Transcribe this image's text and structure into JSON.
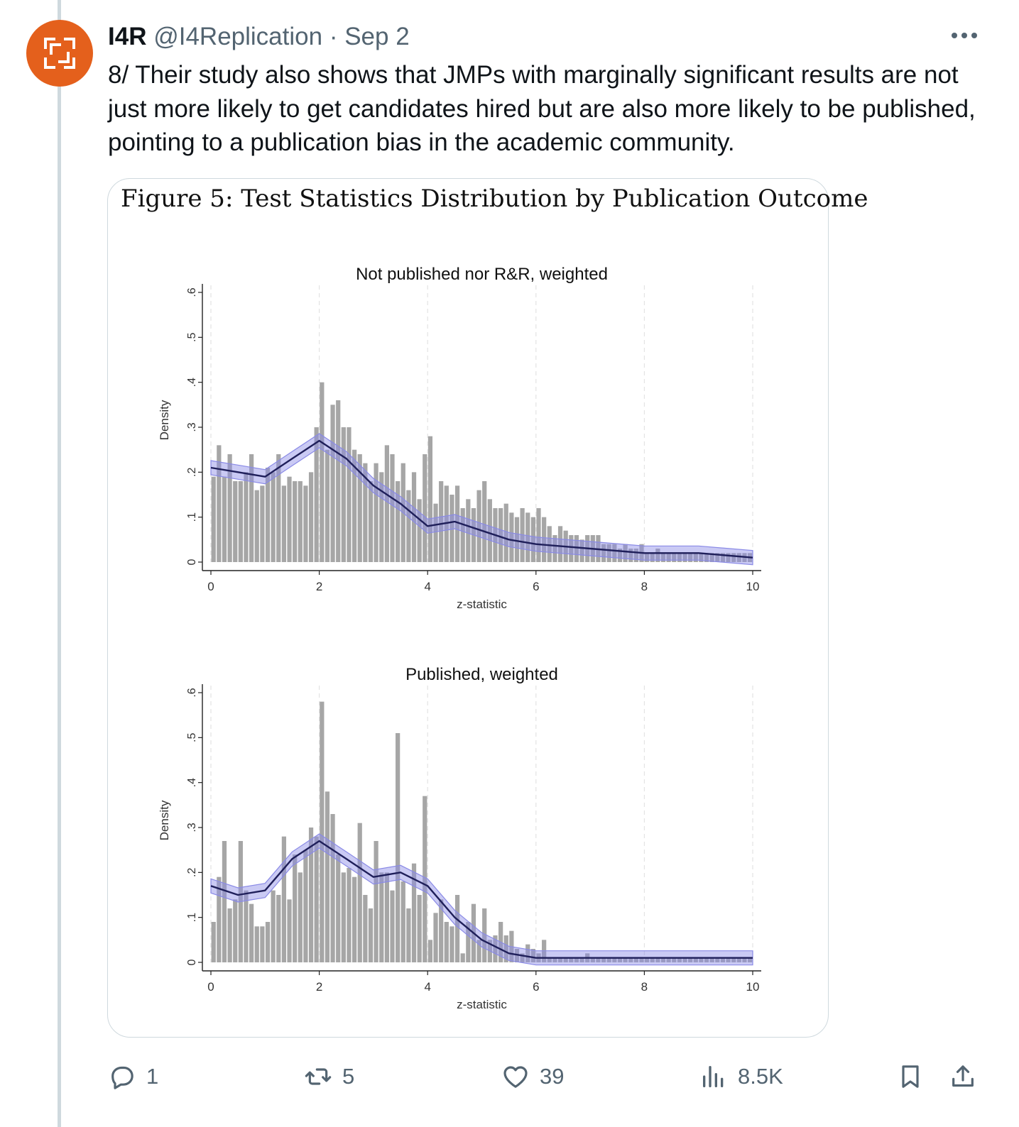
{
  "tweet": {
    "author_name": "I4R",
    "handle": "@I4Replication",
    "separator": "·",
    "date": "Sep 2",
    "text": "8/ Their study also shows that JMPs with marginally significant results are not just more likely to get candidates hired but are also more likely to be published, pointing to a publication bias in the academic community."
  },
  "figure": {
    "caption": "Figure 5: Test Statistics Distribution by Publication Outcome"
  },
  "chart_data": [
    {
      "type": "bar",
      "title": "Not published nor R&R, weighted",
      "xlabel": "z-statistic",
      "ylabel": "Density",
      "xlim": [
        0,
        10
      ],
      "ylim": [
        0,
        0.6
      ],
      "xticks": [
        "0",
        "2",
        "4",
        "6",
        "8",
        "10"
      ],
      "yticks": [
        "0",
        ".1",
        ".2",
        ".3",
        ".4",
        ".5",
        ".6"
      ],
      "bin_width": 0.1,
      "histogram_densities": [
        0.19,
        0.26,
        0.19,
        0.24,
        0.18,
        0.18,
        0.2,
        0.24,
        0.16,
        0.17,
        0.21,
        0.2,
        0.24,
        0.17,
        0.19,
        0.18,
        0.18,
        0.17,
        0.2,
        0.3,
        0.4,
        0.25,
        0.35,
        0.36,
        0.3,
        0.3,
        0.25,
        0.24,
        0.22,
        0.18,
        0.22,
        0.2,
        0.26,
        0.24,
        0.18,
        0.22,
        0.16,
        0.2,
        0.14,
        0.24,
        0.28,
        0.13,
        0.18,
        0.17,
        0.15,
        0.17,
        0.12,
        0.14,
        0.12,
        0.16,
        0.18,
        0.14,
        0.12,
        0.12,
        0.13,
        0.11,
        0.1,
        0.12,
        0.11,
        0.1,
        0.12,
        0.1,
        0.08,
        0.06,
        0.08,
        0.07,
        0.06,
        0.06,
        0.05,
        0.06,
        0.06,
        0.06,
        0.04,
        0.04,
        0.04,
        0.03,
        0.04,
        0.03,
        0.03,
        0.04,
        0.02,
        0.02,
        0.03,
        0.02,
        0.02,
        0.02,
        0.02,
        0.02,
        0.02,
        0.02,
        0.02,
        0.02,
        0.02,
        0.02,
        0.02,
        0.02,
        0.02,
        0.02,
        0.02,
        0.02
      ],
      "kernel_density": {
        "x": [
          0,
          0.5,
          1,
          1.5,
          2,
          2.5,
          3,
          3.5,
          4,
          4.5,
          5,
          5.5,
          6,
          7,
          8,
          9,
          10
        ],
        "y": [
          0.21,
          0.2,
          0.19,
          0.23,
          0.27,
          0.23,
          0.17,
          0.13,
          0.08,
          0.09,
          0.07,
          0.05,
          0.04,
          0.03,
          0.02,
          0.02,
          0.01
        ]
      }
    },
    {
      "type": "bar",
      "title": "Published, weighted",
      "xlabel": "z-statistic",
      "ylabel": "Density",
      "xlim": [
        0,
        10
      ],
      "ylim": [
        0,
        0.6
      ],
      "xticks": [
        "0",
        "2",
        "4",
        "6",
        "8",
        "10"
      ],
      "yticks": [
        "0",
        ".1",
        ".2",
        ".3",
        ".4",
        ".5",
        ".6"
      ],
      "bin_width": 0.1,
      "histogram_densities": [
        0.09,
        0.19,
        0.27,
        0.12,
        0.14,
        0.27,
        0.16,
        0.13,
        0.08,
        0.08,
        0.09,
        0.16,
        0.15,
        0.28,
        0.14,
        0.24,
        0.2,
        0.25,
        0.3,
        0.28,
        0.58,
        0.38,
        0.33,
        0.24,
        0.2,
        0.21,
        0.19,
        0.31,
        0.15,
        0.12,
        0.27,
        0.2,
        0.2,
        0.16,
        0.51,
        0.18,
        0.12,
        0.22,
        0.15,
        0.37,
        0.05,
        0.11,
        0.14,
        0.09,
        0.08,
        0.15,
        0.02,
        0.09,
        0.13,
        0.05,
        0.12,
        0.05,
        0.06,
        0.09,
        0.06,
        0.07,
        0.03,
        0.02,
        0.04,
        0.03,
        0.02,
        0.05,
        0.01,
        0.01,
        0.01,
        0.01,
        0.01,
        0.01,
        0.01,
        0.02,
        0.01,
        0.01,
        0.01,
        0.01,
        0.01,
        0.01,
        0.01,
        0.01,
        0.01,
        0.01,
        0.01,
        0.01,
        0.01,
        0.01,
        0.01,
        0.01,
        0.01,
        0.01,
        0.01,
        0.01,
        0.01,
        0.01,
        0.01,
        0.01,
        0.01,
        0.01,
        0.01,
        0.01,
        0.01,
        0.01
      ],
      "kernel_density": {
        "x": [
          0,
          0.5,
          1,
          1.5,
          2,
          2.5,
          3,
          3.5,
          4,
          4.5,
          5,
          5.5,
          6,
          7,
          8,
          9,
          10
        ],
        "y": [
          0.17,
          0.15,
          0.16,
          0.23,
          0.27,
          0.23,
          0.19,
          0.2,
          0.17,
          0.1,
          0.05,
          0.02,
          0.01,
          0.01,
          0.01,
          0.01,
          0.01
        ]
      }
    }
  ],
  "actions": {
    "reply_count": "1",
    "repost_count": "5",
    "like_count": "39",
    "views_count": "8.5K"
  },
  "colors": {
    "avatar_bg": "#e4601c",
    "bar": "#a6a6a6",
    "kde_line": "#1f1f5a",
    "kde_band": "#8a8ae6",
    "muted_text": "#536471"
  }
}
